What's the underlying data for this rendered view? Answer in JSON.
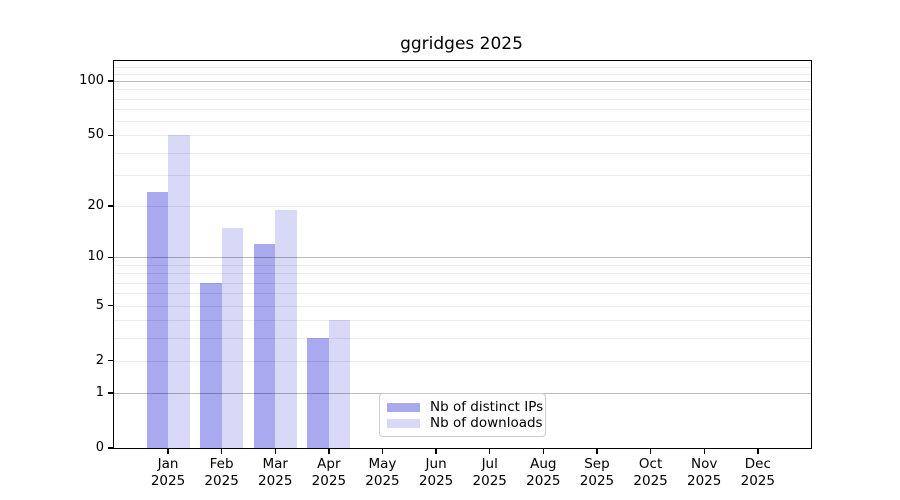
{
  "title": "ggridges 2025",
  "chart_data": {
    "type": "bar",
    "title": "ggridges 2025",
    "scale": "log1p",
    "categories": [
      "Jan",
      "Feb",
      "Mar",
      "Apr",
      "May",
      "Jun",
      "Jul",
      "Aug",
      "Sep",
      "Oct",
      "Nov",
      "Dec"
    ],
    "year_label": "2025",
    "series": [
      {
        "name": "Nb of distinct IPs",
        "color": "#a9a9ef",
        "values": [
          24,
          7,
          12,
          3,
          0,
          0,
          0,
          0,
          0,
          0,
          0,
          0
        ]
      },
      {
        "name": "Nb of downloads",
        "color": "#d8d8f7",
        "values": [
          50,
          15,
          19,
          4,
          0,
          0,
          0,
          0,
          0,
          0,
          0,
          0
        ]
      }
    ],
    "xlabel": "",
    "ylabel": "",
    "ylim": [
      0,
      129
    ],
    "y_ticks": [
      0,
      1,
      2,
      5,
      10,
      20,
      50,
      100
    ],
    "grid_major_values": [
      1,
      10,
      100
    ],
    "grid_minor_values": [
      2,
      3,
      4,
      5,
      6,
      7,
      8,
      9,
      20,
      30,
      40,
      50,
      60,
      70,
      80,
      90,
      110,
      120
    ],
    "grid": "horizontal",
    "legend_position": "lower center"
  },
  "colors": {
    "background": "#ffffff",
    "spine": "#000000",
    "bar_distinct_ips": "#a9a9ef",
    "bar_downloads": "#d8d8f7",
    "legend_border": "#cccccc"
  }
}
